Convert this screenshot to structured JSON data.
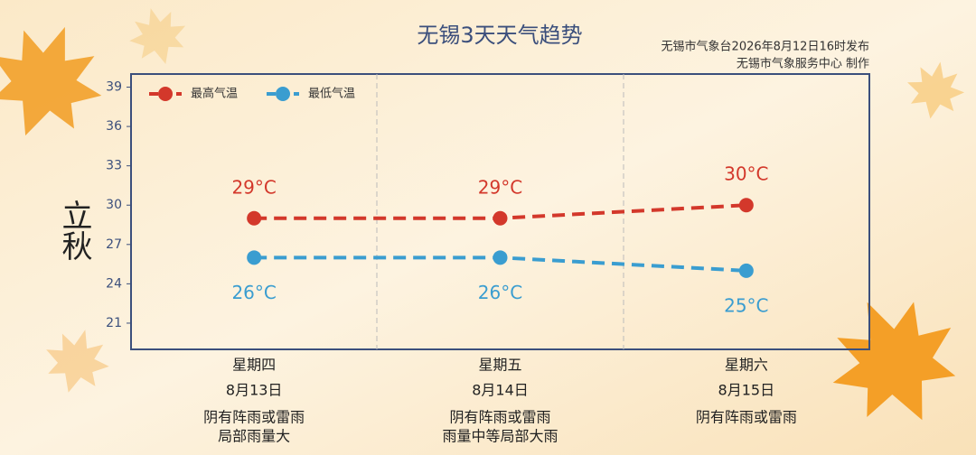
{
  "chart_data": {
    "type": "line",
    "title": "无锡3天天气趋势",
    "source_lines": [
      "无锡市气象台2026年8月12日16时发布",
      "无锡市气象服务中心 制作"
    ],
    "decoration_text": "立秋",
    "categories": [
      "星期四",
      "星期五",
      "星期六"
    ],
    "dates": [
      "8月13日",
      "8月14日",
      "8月15日"
    ],
    "weather": [
      [
        "阴有阵雨或雷雨",
        "局部雨量大"
      ],
      [
        "阴有阵雨或雷雨",
        "雨量中等局部大雨"
      ],
      [
        "阴有阵雨或雷雨"
      ]
    ],
    "series": [
      {
        "name": "最高气温",
        "color": "#d3382b",
        "values": [
          29,
          29,
          30
        ],
        "value_labels": [
          "29°C",
          "29°C",
          "30°C"
        ]
      },
      {
        "name": "最低气温",
        "color": "#3a9dd0",
        "values": [
          26,
          26,
          25
        ],
        "value_labels": [
          "26°C",
          "26°C",
          "25°C"
        ]
      }
    ],
    "ylim": [
      19,
      40
    ],
    "yticks": [
      21,
      24,
      27,
      30,
      33,
      36,
      39
    ],
    "legend": "top-left"
  }
}
